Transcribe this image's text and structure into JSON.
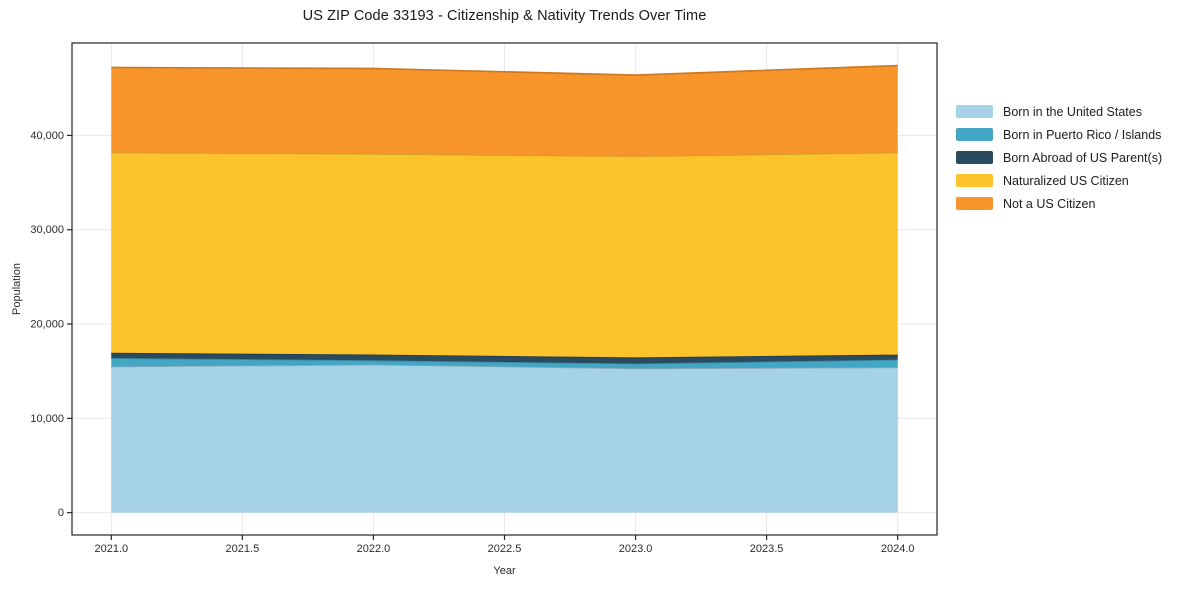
{
  "chart_data": {
    "type": "area",
    "stacked": true,
    "title": "US ZIP Code 33193 - Citizenship & Nativity Trends Over Time",
    "xlabel": "Year",
    "ylabel": "Population",
    "x": [
      2021,
      2022,
      2023,
      2024
    ],
    "series": [
      {
        "name": "Born in the United States",
        "color": "#A5D2E7",
        "values": [
          15500,
          15700,
          15300,
          15400
        ]
      },
      {
        "name": "Born in Puerto Rico / Islands",
        "color": "#44A6C5",
        "values": [
          900,
          450,
          520,
          830
        ]
      },
      {
        "name": "Born Abroad of US Parent(s)",
        "color": "#2A4A5E",
        "values": [
          550,
          620,
          640,
          530
        ]
      },
      {
        "name": "Naturalized US Citizen",
        "color": "#FCC32D",
        "values": [
          21250,
          21280,
          21340,
          21440
        ]
      },
      {
        "name": "Not a US Citizen",
        "color": "#F7952B",
        "values": [
          9000,
          9050,
          8600,
          9200
        ]
      }
    ],
    "totals": [
      47200,
      47100,
      46400,
      47400
    ],
    "x_ticks": [
      2021.0,
      2021.5,
      2022.0,
      2022.5,
      2023.0,
      2023.5,
      2024.0
    ],
    "x_tick_labels": [
      "2021.0",
      "2021.5",
      "2022.0",
      "2022.5",
      "2023.0",
      "2023.5",
      "2024.0"
    ],
    "y_ticks": [
      0,
      10000,
      20000,
      30000,
      40000
    ],
    "y_tick_labels": [
      "0",
      "10,000",
      "20,000",
      "30,000",
      "40,000"
    ],
    "xlim": [
      2020.85,
      2024.15
    ],
    "ylim": [
      -2370,
      49800
    ],
    "grid": true,
    "grid_color": "#e8e8e8",
    "frame_color": "#262626",
    "tick_color": "#2b2b2b",
    "background": "#ffffff",
    "legend_position": "right"
  }
}
